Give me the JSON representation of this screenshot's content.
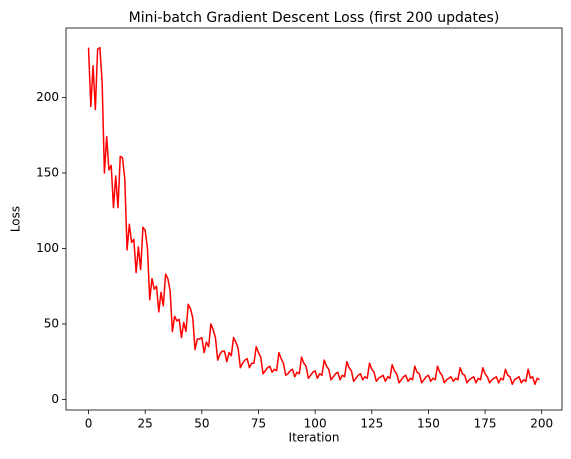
{
  "chart_data": {
    "type": "line",
    "title": "Mini-batch Gradient Descent Loss (first 200 updates)",
    "x_label": "Iteration",
    "y_label": "Loss",
    "x": [
      0,
      1,
      2,
      3,
      4,
      5,
      6,
      7,
      8,
      9,
      10,
      11,
      12,
      13,
      14,
      15,
      16,
      17,
      18,
      19,
      20,
      21,
      22,
      23,
      24,
      25,
      26,
      27,
      28,
      29,
      30,
      31,
      32,
      33,
      34,
      35,
      36,
      37,
      38,
      39,
      40,
      41,
      42,
      43,
      44,
      45,
      46,
      47,
      48,
      49,
      50,
      51,
      52,
      53,
      54,
      55,
      56,
      57,
      58,
      59,
      60,
      61,
      62,
      63,
      64,
      65,
      66,
      67,
      68,
      69,
      70,
      71,
      72,
      73,
      74,
      75,
      76,
      77,
      78,
      79,
      80,
      81,
      82,
      83,
      84,
      85,
      86,
      87,
      88,
      89,
      90,
      91,
      92,
      93,
      94,
      95,
      96,
      97,
      98,
      99,
      100,
      101,
      102,
      103,
      104,
      105,
      106,
      107,
      108,
      109,
      110,
      111,
      112,
      113,
      114,
      115,
      116,
      117,
      118,
      119,
      120,
      121,
      122,
      123,
      124,
      125,
      126,
      127,
      128,
      129,
      130,
      131,
      132,
      133,
      134,
      135,
      136,
      137,
      138,
      139,
      140,
      141,
      142,
      143,
      144,
      145,
      146,
      147,
      148,
      149,
      150,
      151,
      152,
      153,
      154,
      155,
      156,
      157,
      158,
      159,
      160,
      161,
      162,
      163,
      164,
      165,
      166,
      167,
      168,
      169,
      170,
      171,
      172,
      173,
      174,
      175,
      176,
      177,
      178,
      179,
      180,
      181,
      182,
      183,
      184,
      185,
      186,
      187,
      188,
      189,
      190,
      191,
      192,
      193,
      194,
      195,
      196,
      197,
      198,
      199
    ],
    "series": [
      {
        "name": "Loss",
        "color": "#ff0000",
        "values": [
          233,
          194,
          221,
          192,
          232,
          233,
          210,
          150,
          174,
          152,
          155,
          127,
          148,
          127,
          161,
          160,
          146,
          99,
          116,
          104,
          106,
          84,
          101,
          86,
          114,
          112,
          100,
          66,
          80,
          73,
          75,
          58,
          71,
          62,
          83,
          80,
          72,
          45,
          55,
          52,
          53,
          41,
          51,
          45,
          63,
          60,
          54,
          33,
          40,
          40,
          41,
          31,
          38,
          35,
          50,
          46,
          41,
          26,
          30,
          32,
          32,
          25,
          31,
          29,
          41,
          38,
          34,
          21,
          24,
          26,
          27,
          21,
          24,
          24,
          35,
          31,
          28,
          17,
          19,
          21,
          22,
          18,
          20,
          19,
          31,
          27,
          24,
          16,
          17,
          19,
          20,
          15,
          18,
          17,
          28,
          24,
          22,
          14,
          16,
          18,
          19,
          14,
          17,
          16,
          26,
          22,
          20,
          13,
          15,
          17,
          18,
          13,
          16,
          15,
          25,
          21,
          19,
          12,
          14,
          16,
          17,
          13,
          15,
          14,
          24,
          20,
          18,
          12,
          14,
          15,
          16,
          12,
          15,
          14,
          23,
          19,
          17,
          11,
          13,
          15,
          16,
          12,
          14,
          13,
          22,
          18,
          17,
          11,
          13,
          15,
          16,
          12,
          14,
          13,
          22,
          18,
          16,
          11,
          13,
          14,
          15,
          12,
          14,
          13,
          21,
          17,
          16,
          11,
          13,
          14,
          15,
          11,
          14,
          13,
          21,
          17,
          15,
          11,
          13,
          14,
          15,
          11,
          14,
          13,
          20,
          16,
          15,
          10,
          13,
          14,
          15,
          11,
          13,
          12,
          20,
          14,
          15,
          10,
          14,
          13
        ]
      }
    ],
    "xlim": [
      -9.95,
      208.95
    ],
    "xticks": [
      0,
      25,
      50,
      75,
      100,
      125,
      150,
      175,
      200
    ],
    "ylim": [
      -7,
      246
    ],
    "yticks": [
      0,
      50,
      100,
      150,
      200
    ],
    "grid": false
  }
}
